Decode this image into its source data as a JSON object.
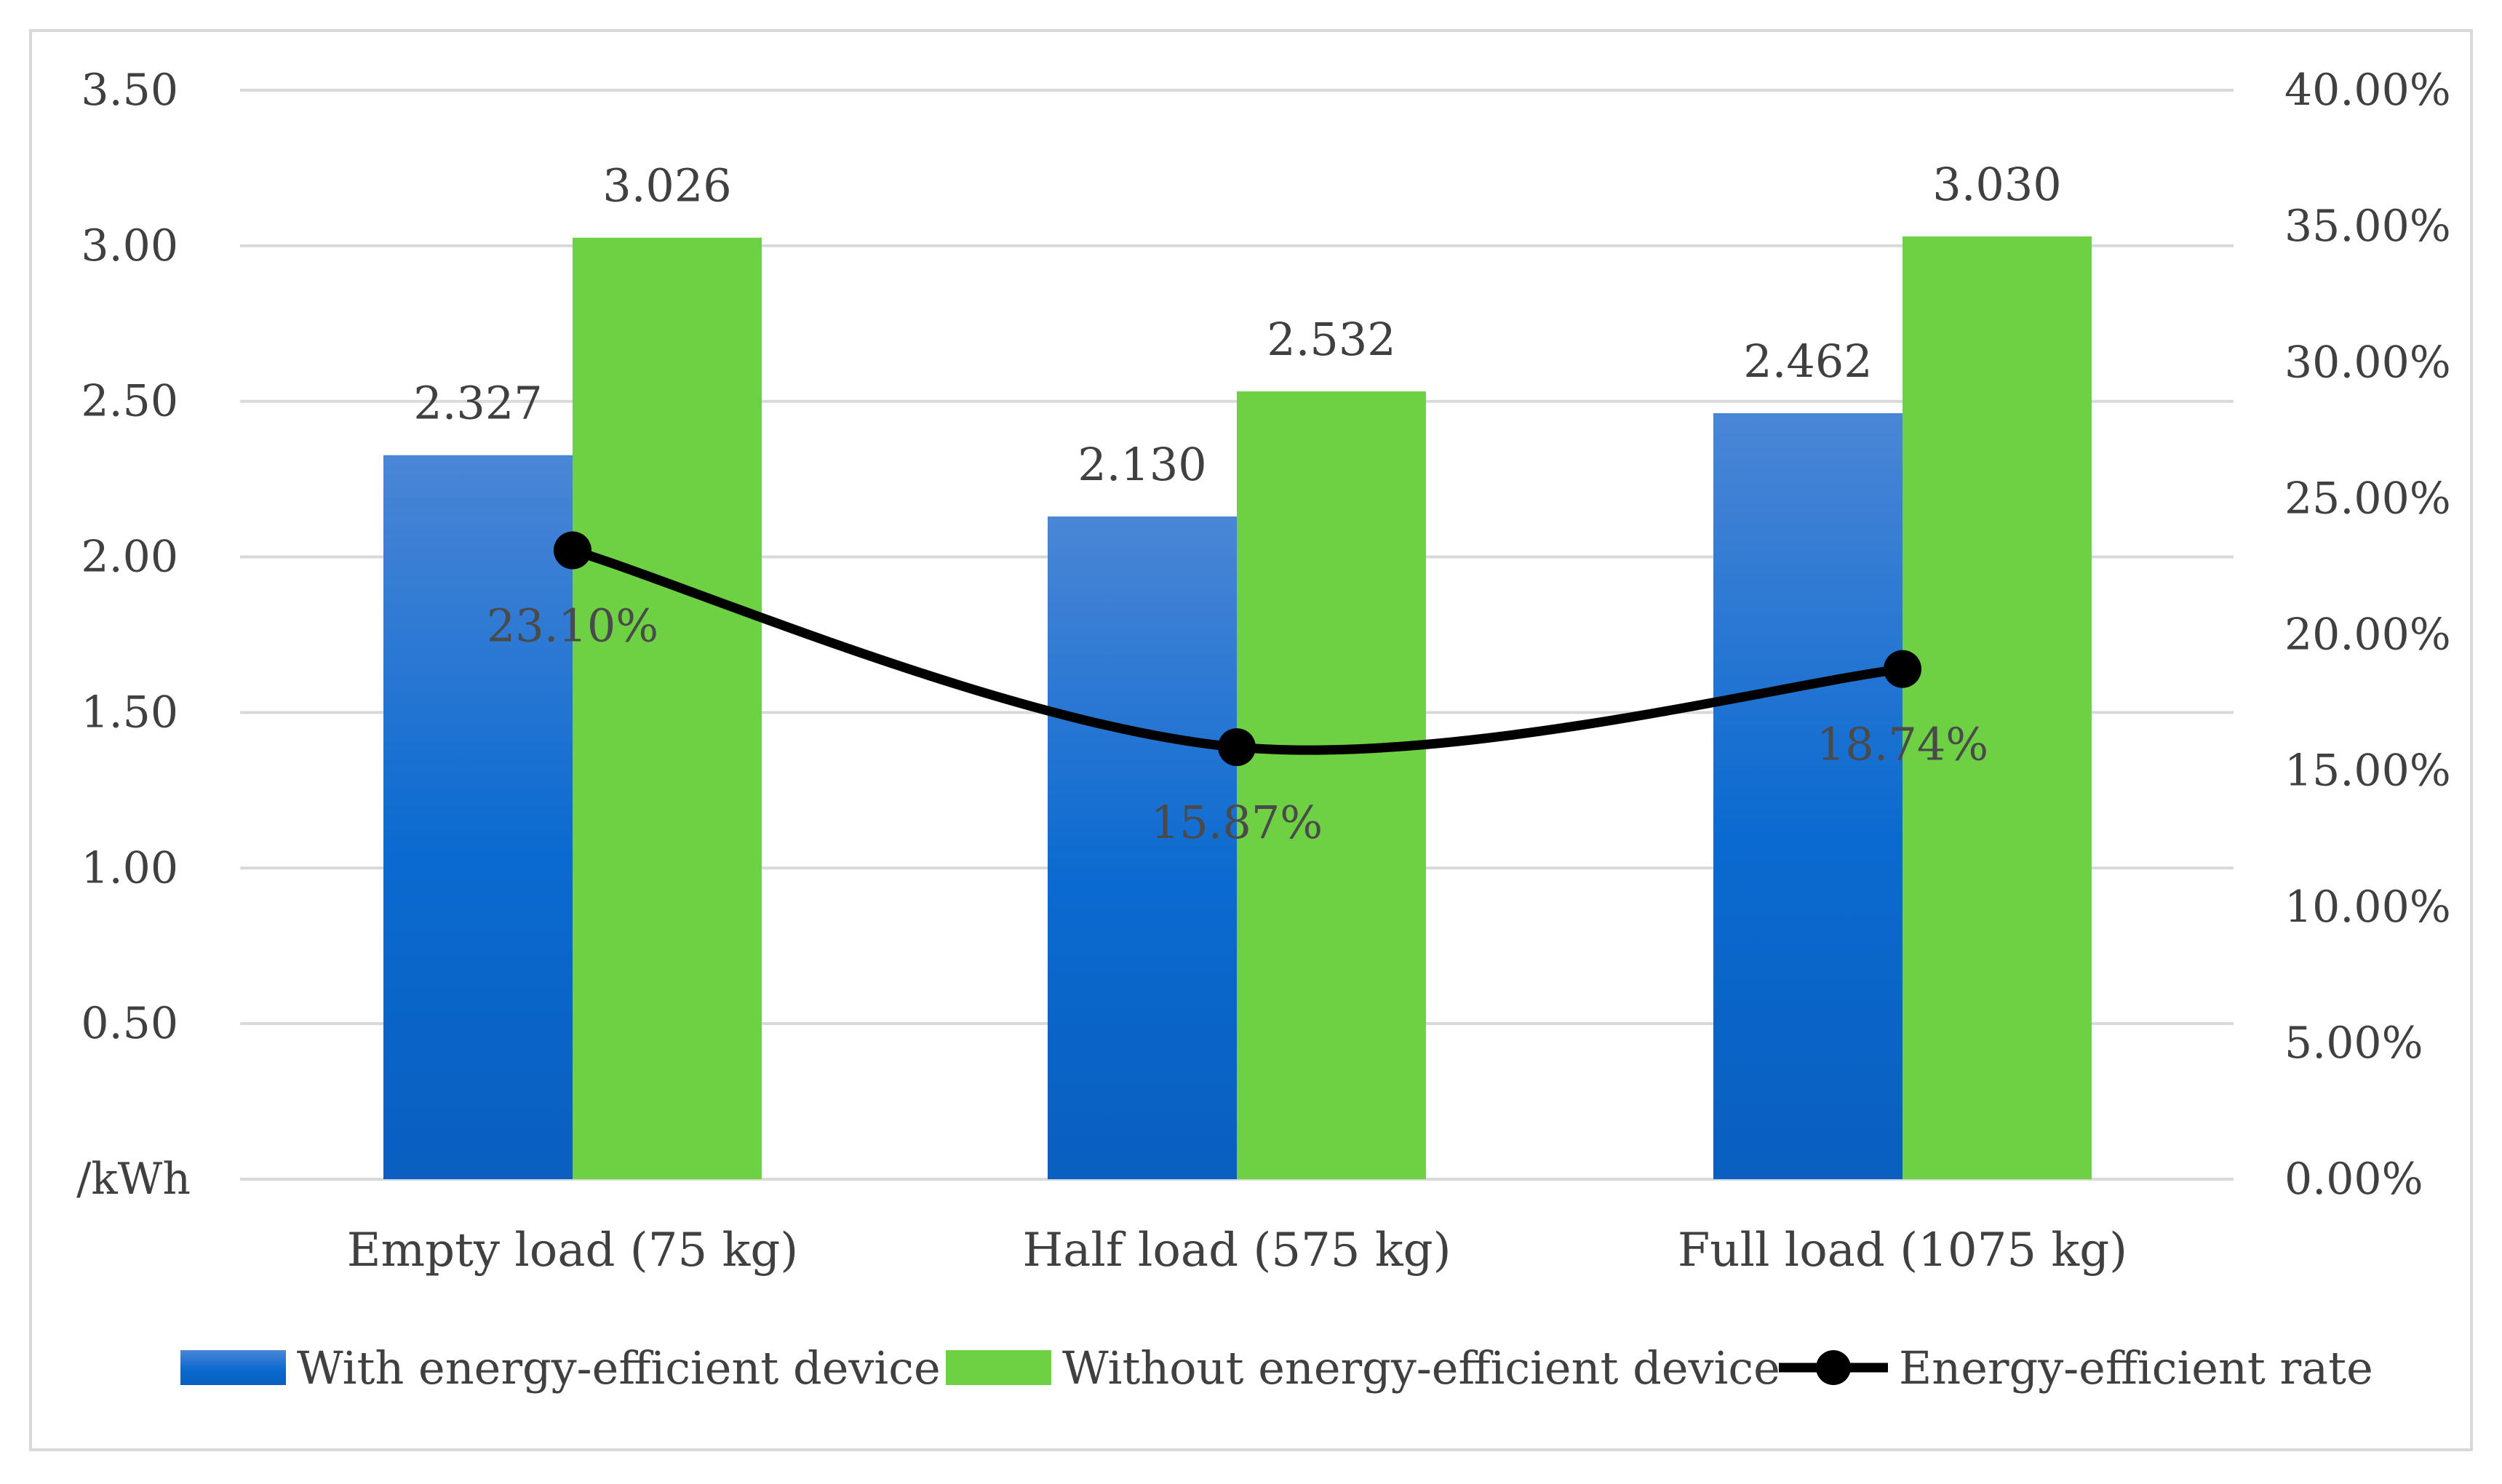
{
  "chart_data": {
    "type": "bar",
    "title": "",
    "categories": [
      "Empty load (75 kg)",
      "Half load (575 kg)",
      "Full load (1075 kg)"
    ],
    "series": [
      {
        "name": "With energy-efficient device",
        "kind": "bar",
        "axis": "left",
        "color": "#1f6fd0",
        "values": [
          2.327,
          2.13,
          2.462
        ],
        "labels": [
          "2.327",
          "2.130",
          "2.462"
        ]
      },
      {
        "name": "Without energy-efficient device",
        "kind": "bar",
        "axis": "left",
        "color": "#6dd143",
        "values": [
          3.026,
          2.532,
          3.03
        ],
        "labels": [
          "3.026",
          "2.532",
          "3.030"
        ]
      },
      {
        "name": "Energy-efficient rate",
        "kind": "line",
        "axis": "right",
        "color": "#000000",
        "values": [
          23.1,
          15.87,
          18.74
        ],
        "labels": [
          "23.10%",
          "15.87%",
          "18.74%"
        ]
      }
    ],
    "y_left": {
      "unit_label": "/kWh",
      "ylim": [
        0,
        3.5
      ],
      "ticks": [
        "3.50",
        "3.00",
        "2.50",
        "2.00",
        "1.50",
        "1.00",
        "0.50"
      ],
      "tick_values": [
        3.5,
        3.0,
        2.5,
        2.0,
        1.5,
        1.0,
        0.5
      ]
    },
    "y_right": {
      "ylim": [
        0,
        40
      ],
      "ticks": [
        "40.00%",
        "35.00%",
        "30.00%",
        "25.00%",
        "20.00%",
        "15.00%",
        "10.00%",
        "5.00%",
        "0.00%"
      ],
      "tick_values": [
        40,
        35,
        30,
        25,
        20,
        15,
        10,
        5,
        0
      ]
    },
    "grid": true,
    "legend_position": "bottom"
  }
}
